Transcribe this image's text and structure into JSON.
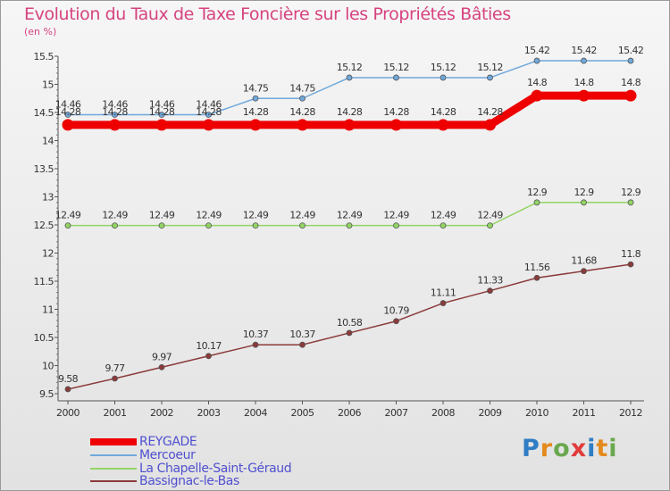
{
  "chart_data": {
    "type": "line",
    "title": "Evolution du Taux de Taxe Foncière sur les Propriétés Bâties",
    "subtitle": "(en %)",
    "xlabel": "",
    "ylabel": "",
    "x": [
      "2000",
      "2001",
      "2002",
      "2003",
      "2004",
      "2005",
      "2006",
      "2007",
      "2008",
      "2009",
      "2010",
      "2011",
      "2012"
    ],
    "ylim": [
      9.5,
      15.5
    ],
    "yticks": [
      "15.5",
      "15",
      "14.5",
      "14",
      "13.5",
      "13",
      "12.5",
      "12",
      "11.5",
      "11",
      "10.5",
      "10",
      "9.5"
    ],
    "grid": false,
    "legend_position": "bottom-left",
    "series": [
      {
        "name": "REYGADE",
        "color": "#ee0000",
        "values": [
          14.28,
          14.28,
          14.28,
          14.28,
          14.28,
          14.28,
          14.28,
          14.28,
          14.28,
          14.28,
          14.8,
          14.8,
          14.8
        ],
        "labels": [
          "14.28",
          "14.28",
          "14.28",
          "14.28",
          "14.28",
          "14.28",
          "14.28",
          "14.28",
          "14.28",
          "14.28",
          "14.8",
          "14.8",
          "14.8"
        ]
      },
      {
        "name": "Mercoeur",
        "color": "#6fa8dc",
        "values": [
          14.46,
          14.46,
          14.46,
          14.46,
          14.75,
          14.75,
          15.12,
          15.12,
          15.12,
          15.12,
          15.42,
          15.42,
          15.42
        ],
        "labels": [
          "14.46",
          "14.46",
          "14.46",
          "14.46",
          "14.75",
          "14.75",
          "15.12",
          "15.12",
          "15.12",
          "15.12",
          "15.42",
          "15.42",
          "15.42"
        ]
      },
      {
        "name": "La Chapelle-Saint-Géraud",
        "color": "#93d464",
        "values": [
          12.49,
          12.49,
          12.49,
          12.49,
          12.49,
          12.49,
          12.49,
          12.49,
          12.49,
          12.49,
          12.9,
          12.9,
          12.9
        ],
        "labels": [
          "12.49",
          "12.49",
          "12.49",
          "12.49",
          "12.49",
          "12.49",
          "12.49",
          "12.49",
          "12.49",
          "12.49",
          "12.9",
          "12.9",
          "12.9"
        ]
      },
      {
        "name": "Bassignac-le-Bas",
        "color": "#8b3a3a",
        "values": [
          9.58,
          9.77,
          9.97,
          10.17,
          10.37,
          10.37,
          10.58,
          10.79,
          11.11,
          11.33,
          11.56,
          11.68,
          11.8
        ],
        "labels": [
          "9.58",
          "9.77",
          "9.97",
          "10.17",
          "10.37",
          "10.37",
          "10.58",
          "10.79",
          "11.11",
          "11.33",
          "11.56",
          "11.68",
          "11.8"
        ]
      }
    ]
  },
  "logo": {
    "letters": [
      "P",
      "r",
      "o",
      "x",
      "i",
      "t",
      "i"
    ]
  }
}
